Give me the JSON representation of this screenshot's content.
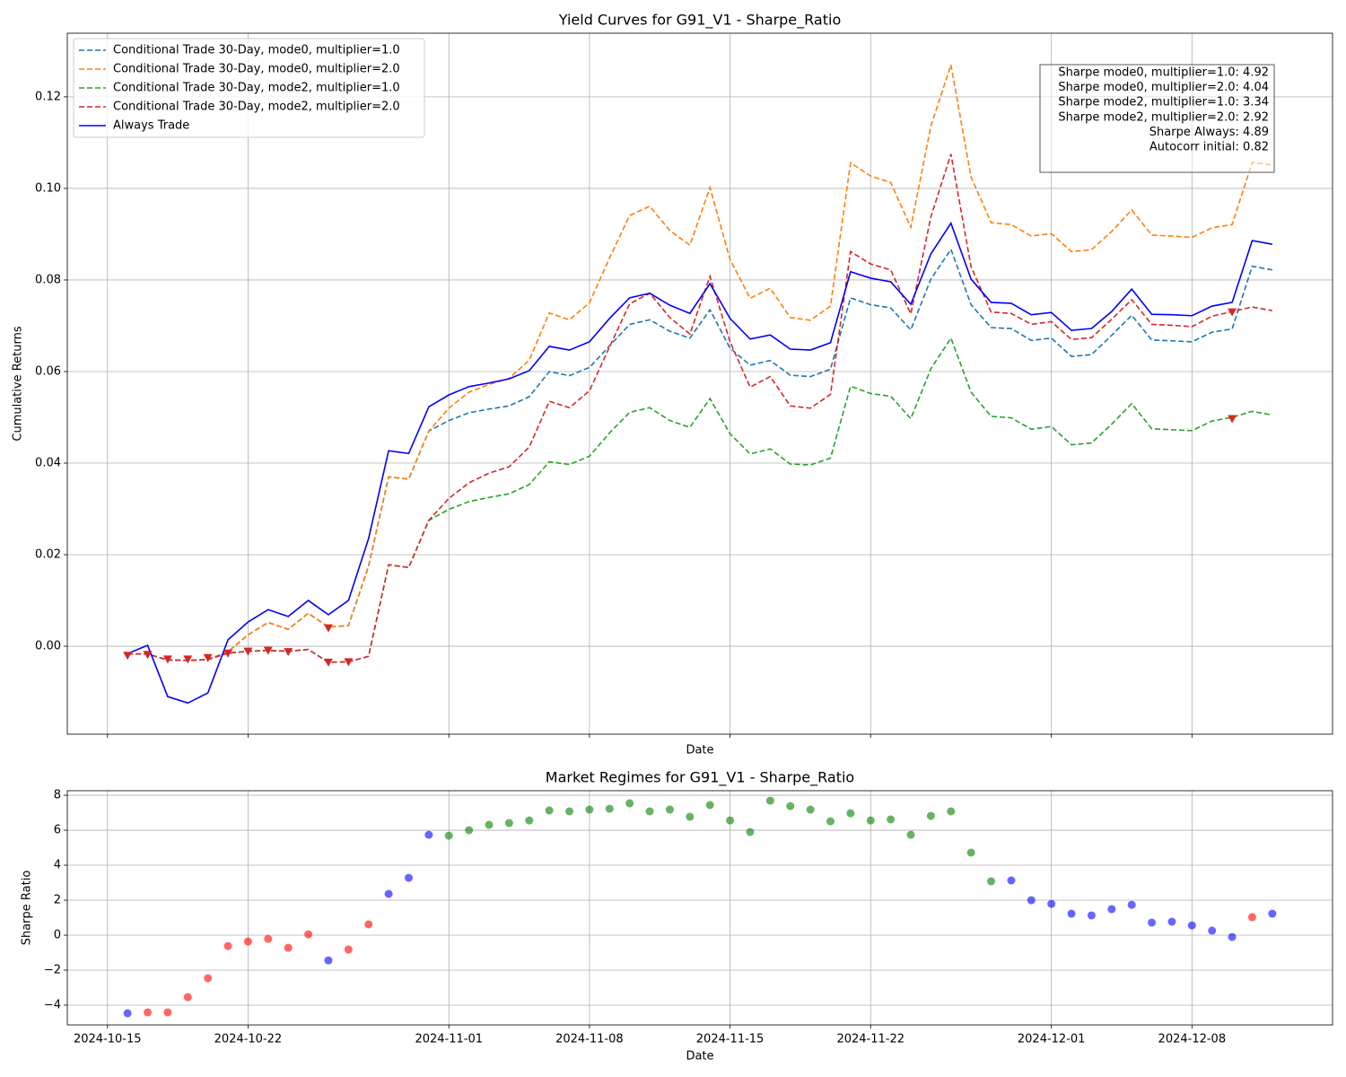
{
  "chart_data": [
    {
      "type": "line",
      "title": "Yield Curves for G91_V1 - Sharpe_Ratio",
      "xlabel": "Date",
      "ylabel": "Cumulative Returns",
      "x": [
        "2024-10-16",
        "2024-10-17",
        "2024-10-18",
        "2024-10-19",
        "2024-10-20",
        "2024-10-21",
        "2024-10-22",
        "2024-10-23",
        "2024-10-24",
        "2024-10-25",
        "2024-10-26",
        "2024-10-27",
        "2024-10-28",
        "2024-10-29",
        "2024-10-30",
        "2024-10-31",
        "2024-11-01",
        "2024-11-02",
        "2024-11-03",
        "2024-11-04",
        "2024-11-05",
        "2024-11-06",
        "2024-11-07",
        "2024-11-08",
        "2024-11-09",
        "2024-11-10",
        "2024-11-11",
        "2024-11-12",
        "2024-11-13",
        "2024-11-14",
        "2024-11-15",
        "2024-11-16",
        "2024-11-17",
        "2024-11-18",
        "2024-11-19",
        "2024-11-20",
        "2024-11-21",
        "2024-11-22",
        "2024-11-23",
        "2024-11-24",
        "2024-11-25",
        "2024-11-26",
        "2024-11-27",
        "2024-11-28",
        "2024-11-29",
        "2024-11-30",
        "2024-12-01",
        "2024-12-02",
        "2024-12-03",
        "2024-12-04",
        "2024-12-05",
        "2024-12-06",
        "2024-12-07",
        "2024-12-08",
        "2024-12-09",
        "2024-12-10",
        "2024-12-11",
        "2024-12-12"
      ],
      "series": [
        {
          "name": "Conditional Trade 30-Day, mode0, multiplier=1.0",
          "color": "#1f77b4",
          "linestyle": "dashed",
          "values": [
            -0.0017,
            -0.0017,
            -0.003,
            -0.0031,
            -0.0029,
            -0.0012,
            0.0025,
            0.0052,
            0.0037,
            0.0072,
            0.0042,
            0.0045,
            0.0175,
            0.037,
            0.0365,
            0.047,
            0.0493,
            0.051,
            0.0518,
            0.0525,
            0.0545,
            0.06,
            0.0591,
            0.0609,
            0.0656,
            0.0703,
            0.0713,
            0.0688,
            0.0673,
            0.0735,
            0.0651,
            0.0614,
            0.0624,
            0.0592,
            0.0589,
            0.0605,
            0.0761,
            0.0746,
            0.0739,
            0.0691,
            0.0802,
            0.0867,
            0.0746,
            0.0696,
            0.0694,
            0.0668,
            0.0673,
            0.0633,
            0.0637,
            0.0679,
            0.0723,
            0.0669,
            0.0667,
            0.0665,
            0.0686,
            0.0693,
            0.083,
            0.0822
          ]
        },
        {
          "name": "Conditional Trade 30-Day, mode0, multiplier=2.0",
          "color": "#ff7f0e",
          "linestyle": "dashed",
          "values": [
            -0.0017,
            -0.0017,
            -0.003,
            -0.0031,
            -0.0029,
            -0.0012,
            0.0025,
            0.0052,
            0.0037,
            0.0072,
            0.0042,
            0.0045,
            0.0175,
            0.037,
            0.0365,
            0.047,
            0.052,
            0.0555,
            0.0572,
            0.0585,
            0.0625,
            0.0728,
            0.0713,
            0.075,
            0.0848,
            0.0941,
            0.0961,
            0.0908,
            0.0876,
            0.1002,
            0.0845,
            0.076,
            0.0782,
            0.0718,
            0.0712,
            0.0743,
            0.1056,
            0.1027,
            0.1013,
            0.0915,
            0.1136,
            0.127,
            0.1025,
            0.0925,
            0.0921,
            0.0896,
            0.0901,
            0.0862,
            0.0866,
            0.0906,
            0.0953,
            0.0898,
            0.0896,
            0.0893,
            0.0914,
            0.0921,
            0.1057,
            0.1051
          ]
        },
        {
          "name": "Conditional Trade 30-Day, mode2, multiplier=1.0",
          "color": "#2ca02c",
          "linestyle": "dashed",
          "values": [
            -0.0017,
            -0.0017,
            -0.003,
            -0.0031,
            -0.0029,
            -0.0015,
            -0.0011,
            -0.0009,
            -0.0011,
            -0.0007,
            -0.0035,
            -0.0034,
            -0.0022,
            0.0178,
            0.0172,
            0.0275,
            0.0299,
            0.0316,
            0.0325,
            0.0333,
            0.0353,
            0.0403,
            0.0397,
            0.0415,
            0.0466,
            0.0511,
            0.0521,
            0.0493,
            0.0478,
            0.0541,
            0.0464,
            0.042,
            0.0431,
            0.0398,
            0.0396,
            0.0411,
            0.0568,
            0.0552,
            0.0546,
            0.0497,
            0.0606,
            0.0673,
            0.0555,
            0.0502,
            0.0499,
            0.0474,
            0.048,
            0.044,
            0.0444,
            0.0485,
            0.053,
            0.0475,
            0.0473,
            0.0471,
            0.0492,
            0.05,
            0.0513,
            0.0505
          ]
        },
        {
          "name": "Conditional Trade 30-Day, mode2, multiplier=2.0",
          "color": "#d62728",
          "linestyle": "dashed",
          "values": [
            -0.0017,
            -0.0017,
            -0.003,
            -0.0031,
            -0.0029,
            -0.0015,
            -0.0011,
            -0.0009,
            -0.0011,
            -0.0007,
            -0.0035,
            -0.0034,
            -0.0022,
            0.0178,
            0.0172,
            0.0275,
            0.0323,
            0.0357,
            0.0378,
            0.0392,
            0.0435,
            0.0535,
            0.0521,
            0.0558,
            0.0654,
            0.0748,
            0.0771,
            0.0718,
            0.0682,
            0.0808,
            0.0665,
            0.0566,
            0.0589,
            0.0525,
            0.052,
            0.055,
            0.0862,
            0.0835,
            0.0822,
            0.0726,
            0.0938,
            0.1075,
            0.0829,
            0.073,
            0.0727,
            0.0703,
            0.0709,
            0.067,
            0.0674,
            0.0714,
            0.0757,
            0.0703,
            0.0701,
            0.0698,
            0.0721,
            0.0731,
            0.0741,
            0.0733
          ]
        },
        {
          "name": "Always Trade",
          "color": "#0000ff",
          "linestyle": "solid",
          "values": [
            -0.0016,
            0.0002,
            -0.011,
            -0.0124,
            -0.0102,
            0.0014,
            0.0053,
            0.008,
            0.0065,
            0.01,
            0.0069,
            0.01,
            0.0235,
            0.0427,
            0.0421,
            0.0523,
            0.0549,
            0.0567,
            0.0575,
            0.0584,
            0.0602,
            0.0655,
            0.0647,
            0.0665,
            0.0716,
            0.0761,
            0.0771,
            0.0745,
            0.0727,
            0.0792,
            0.0716,
            0.0671,
            0.068,
            0.0649,
            0.0647,
            0.0663,
            0.0818,
            0.0804,
            0.0796,
            0.0747,
            0.0857,
            0.0924,
            0.0802,
            0.0751,
            0.0749,
            0.0724,
            0.0729,
            0.069,
            0.0694,
            0.0731,
            0.078,
            0.0725,
            0.0724,
            0.0722,
            0.0743,
            0.0751,
            0.0886,
            0.0878
          ]
        }
      ],
      "markers": {
        "color": "#d62728",
        "x": [
          "2024-10-16",
          "2024-10-17",
          "2024-10-18",
          "2024-10-19",
          "2024-10-20",
          "2024-10-21",
          "2024-10-22",
          "2024-10-23",
          "2024-10-24",
          "2024-10-26",
          "2024-10-26",
          "2024-10-27",
          "2024-12-10",
          "2024-12-10"
        ],
        "values": [
          -0.002,
          -0.0018,
          -0.0028,
          -0.0028,
          -0.0025,
          -0.0015,
          -0.0011,
          -0.0009,
          -0.0012,
          0.004,
          -0.0035,
          -0.0034,
          0.073,
          0.0497
        ]
      },
      "annotation": [
        "Sharpe mode0, multiplier=1.0: 4.92",
        "Sharpe mode0, multiplier=2.0: 4.04",
        "Sharpe mode2, multiplier=1.0: 3.34",
        "Sharpe mode2, multiplier=2.0: 2.92",
        "Sharpe Always: 4.89",
        "Autocorr initial: 0.82"
      ],
      "ylim": [
        -0.0192,
        0.1339
      ],
      "yticks": [
        {
          "value": 0,
          "label": "0.00"
        },
        {
          "value": 0.02,
          "label": "0.02"
        },
        {
          "value": 0.04,
          "label": "0.04"
        },
        {
          "value": 0.06,
          "label": "0.06"
        },
        {
          "value": 0.08,
          "label": "0.08"
        },
        {
          "value": 0.1,
          "label": "0.10"
        },
        {
          "value": 0.12,
          "label": "0.12"
        }
      ],
      "grid": true,
      "legend": "upper left"
    },
    {
      "type": "scatter",
      "title": "Market Regimes for G91_V1 - Sharpe_Ratio",
      "xlabel": "Date",
      "ylabel": "Sharpe Ratio",
      "series": [
        {
          "color": "red",
          "x": [
            "2024-10-17",
            "2024-10-18",
            "2024-10-19",
            "2024-10-20",
            "2024-10-21",
            "2024-10-22",
            "2024-10-23",
            "2024-10-24",
            "2024-10-25",
            "2024-10-27",
            "2024-10-28",
            "2024-12-11"
          ],
          "values": [
            -4.41,
            -4.41,
            -3.54,
            -2.46,
            -0.62,
            -0.36,
            -0.21,
            -0.72,
            0.05,
            -0.82,
            0.62,
            1.03
          ]
        },
        {
          "color": "blue",
          "x": [
            "2024-10-16",
            "2024-10-26",
            "2024-10-29",
            "2024-10-30",
            "2024-10-31",
            "2024-11-29",
            "2024-11-30",
            "2024-12-01",
            "2024-12-02",
            "2024-12-03",
            "2024-12-04",
            "2024-12-05",
            "2024-12-06",
            "2024-12-07",
            "2024-12-08",
            "2024-12-09",
            "2024-12-10",
            "2024-12-12"
          ],
          "values": [
            -4.46,
            -1.44,
            2.36,
            3.28,
            5.74,
            3.13,
            2.0,
            1.79,
            1.23,
            1.13,
            1.49,
            1.74,
            0.72,
            0.77,
            0.56,
            0.26,
            -0.1,
            1.23
          ]
        },
        {
          "color": "green",
          "x": [
            "2024-11-01",
            "2024-11-02",
            "2024-11-03",
            "2024-11-04",
            "2024-11-05",
            "2024-11-06",
            "2024-11-07",
            "2024-11-08",
            "2024-11-09",
            "2024-11-10",
            "2024-11-11",
            "2024-11-12",
            "2024-11-13",
            "2024-11-14",
            "2024-11-15",
            "2024-11-16",
            "2024-11-17",
            "2024-11-18",
            "2024-11-19",
            "2024-11-20",
            "2024-11-21",
            "2024-11-22",
            "2024-11-23",
            "2024-11-24",
            "2024-11-25",
            "2024-11-26",
            "2024-11-27",
            "2024-11-28"
          ],
          "values": [
            5.69,
            6.0,
            6.31,
            6.41,
            6.56,
            7.13,
            7.08,
            7.18,
            7.23,
            7.54,
            7.08,
            7.18,
            6.77,
            7.44,
            6.56,
            5.9,
            7.69,
            7.38,
            7.18,
            6.51,
            6.97,
            6.56,
            6.62,
            5.74,
            6.82,
            7.08,
            4.72,
            3.08
          ]
        }
      ],
      "xlim": [
        "2024-10-13",
        "2024-12-15"
      ],
      "xticks": [
        "2024-10-15",
        "2024-10-22",
        "2024-11-01",
        "2024-11-08",
        "2024-11-15",
        "2024-11-22",
        "2024-12-01",
        "2024-12-08"
      ],
      "ylim": [
        -5.13,
        8.26
      ],
      "yticks": [
        {
          "value": -4,
          "label": "−4"
        },
        {
          "value": -2,
          "label": "−2"
        },
        0,
        2,
        4,
        6,
        8
      ],
      "grid": true
    }
  ]
}
